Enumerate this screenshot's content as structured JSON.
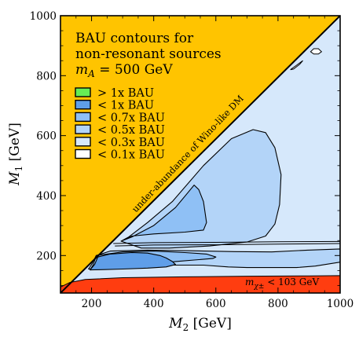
{
  "chart_data": {
    "type": "contour",
    "title_lines": [
      "BAU contours for",
      "non-resonant sources"
    ],
    "title_math": {
      "var": "m",
      "sub": "A",
      "rest": " = 500 GeV"
    },
    "xlabel": {
      "var": "M",
      "sub": "2",
      "rest": " [GeV]"
    },
    "ylabel": {
      "var": "M",
      "sub": "1",
      "rest": " [GeV]"
    },
    "xlim": [
      100,
      1000
    ],
    "ylim": [
      75,
      1000
    ],
    "xticks": [
      200,
      400,
      600,
      800,
      1000
    ],
    "yticks": [
      200,
      400,
      600,
      800,
      1000
    ],
    "legend": [
      {
        "label": "> 1x BAU",
        "color": "#66ee55"
      },
      {
        "label": "< 1x BAU",
        "color": "#5f9ee8"
      },
      {
        "label": "< 0.7x BAU",
        "color": "#8fc0f5"
      },
      {
        "label": "< 0.5x BAU",
        "color": "#b3d4f8"
      },
      {
        "label": "< 0.3x BAU",
        "color": "#d6e8fb"
      },
      {
        "label": "< 0.1x BAU",
        "color": "#ffffff"
      }
    ],
    "regions": [
      {
        "name": "under-abundance of Wino-like DM",
        "color": "#ffc400",
        "boundary": [
          [
            100,
            75
          ],
          [
            1000,
            1000
          ]
        ]
      },
      {
        "name": "chargino mass bound",
        "color": "#ff3d10",
        "label_var": "m",
        "label_sub": "χ±",
        "label_rest": " < 103 GeV"
      }
    ],
    "contours": [
      {
        "level": "< 0.5x BAU",
        "points": [
          [
            295,
            248
          ],
          [
            320,
            262
          ],
          [
            380,
            310
          ],
          [
            460,
            380
          ],
          [
            560,
            500
          ],
          [
            650,
            590
          ],
          [
            720,
            620
          ],
          [
            760,
            610
          ],
          [
            790,
            560
          ],
          [
            810,
            470
          ],
          [
            805,
            370
          ],
          [
            790,
            305
          ],
          [
            760,
            265
          ],
          [
            700,
            245
          ],
          [
            580,
            232
          ],
          [
            450,
            225
          ],
          [
            360,
            225
          ]
        ]
      },
      {
        "level": "< 0.7x BAU",
        "points": [
          [
            300,
            250
          ],
          [
            330,
            262
          ],
          [
            400,
            300
          ],
          [
            470,
            360
          ],
          [
            510,
            410
          ],
          [
            530,
            435
          ],
          [
            545,
            420
          ],
          [
            560,
            380
          ],
          [
            570,
            310
          ],
          [
            560,
            285
          ],
          [
            500,
            278
          ],
          [
            400,
            272
          ],
          [
            330,
            265
          ]
        ]
      },
      {
        "level": "< 0.5x BAU",
        "points": [
          [
            190,
            155
          ],
          [
            200,
            170
          ],
          [
            215,
            200
          ],
          [
            260,
            215
          ],
          [
            380,
            218
          ],
          [
            520,
            216
          ],
          [
            660,
            213
          ],
          [
            780,
            212
          ],
          [
            895,
            218
          ],
          [
            1000,
            222
          ],
          [
            1000,
            178
          ],
          [
            920,
            165
          ],
          [
            860,
            160
          ],
          [
            780,
            160
          ],
          [
            700,
            160
          ],
          [
            640,
            162
          ],
          [
            560,
            168
          ],
          [
            450,
            168
          ],
          [
            330,
            165
          ],
          [
            250,
            160
          ]
        ]
      },
      {
        "level": "< 0.7x BAU",
        "points": [
          [
            195,
            152
          ],
          [
            205,
            168
          ],
          [
            215,
            200
          ],
          [
            300,
            212
          ],
          [
            400,
            215
          ],
          [
            500,
            210
          ],
          [
            570,
            205
          ],
          [
            600,
            195
          ],
          [
            590,
            190
          ],
          [
            530,
            185
          ],
          [
            470,
            180
          ],
          [
            400,
            172
          ],
          [
            300,
            160
          ],
          [
            240,
            155
          ]
        ]
      },
      {
        "level": "< 1x BAU",
        "points": [
          [
            195,
            152
          ],
          [
            210,
            170
          ],
          [
            220,
            195
          ],
          [
            260,
            205
          ],
          [
            330,
            210
          ],
          [
            380,
            208
          ],
          [
            420,
            200
          ],
          [
            440,
            192
          ],
          [
            460,
            180
          ],
          [
            470,
            170
          ],
          [
            440,
            162
          ],
          [
            380,
            158
          ],
          [
            300,
            155
          ],
          [
            240,
            153
          ]
        ]
      }
    ],
    "thin_lines": [
      {
        "level": "< 0.1x BAU",
        "points": [
          [
            270,
            240
          ],
          [
            400,
            243
          ],
          [
            600,
            244
          ],
          [
            800,
            246
          ],
          [
            1000,
            247
          ]
        ]
      },
      {
        "level": "< 0.1x BAU",
        "points": [
          [
            275,
            232
          ],
          [
            400,
            235
          ],
          [
            600,
            236
          ],
          [
            800,
            238
          ],
          [
            1000,
            240
          ]
        ]
      }
    ],
    "small_islands": [
      {
        "level": "< 0.1x BAU",
        "points": [
          [
            905,
            880
          ],
          [
            915,
            872
          ],
          [
            930,
            872
          ],
          [
            940,
            880
          ],
          [
            930,
            890
          ],
          [
            915,
            890
          ]
        ]
      },
      {
        "level": "< 0.1x BAU",
        "points": [
          [
            840,
            820
          ],
          [
            860,
            835
          ],
          [
            880,
            850
          ],
          [
            870,
            838
          ],
          [
            850,
            822
          ]
        ]
      }
    ]
  }
}
